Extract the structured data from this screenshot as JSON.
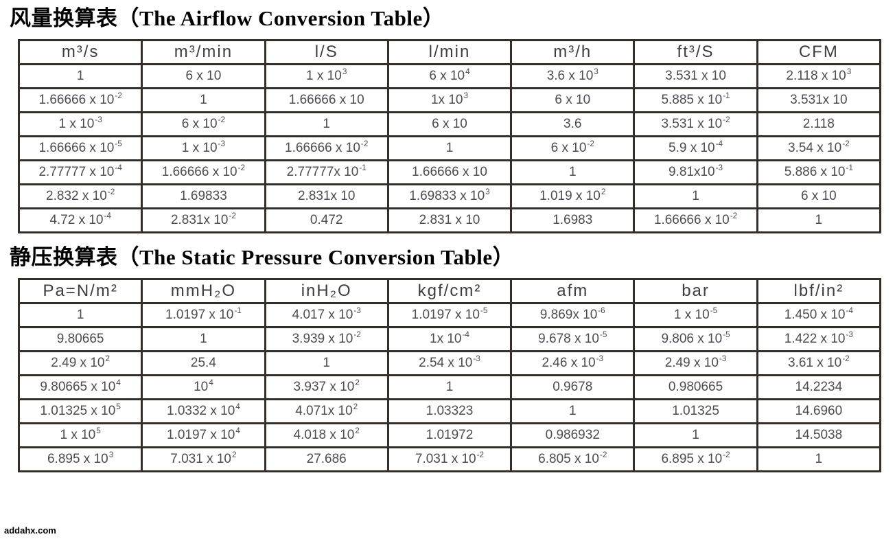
{
  "page": {
    "watermark": "addahx.com"
  },
  "tables": [
    {
      "name": "airflow-conversion-table",
      "title": "风量换算表（The Airflow Conversion Table）",
      "headers": [
        "m³/s",
        "m³/min",
        "l/S",
        "l/min",
        "m³/h",
        "ft³/S",
        "CFM"
      ],
      "rows": [
        [
          "1",
          "6 x 10",
          "1 x 10^3",
          "6 x 10^4",
          "3.6 x 10^3",
          "3.531 x 10",
          "2.118 x 10^3"
        ],
        [
          "1.66666 x 10^-2",
          "1",
          "1.66666 x 10",
          "1x 10^3",
          "6 x 10",
          "5.885 x 10^-1",
          "3.531x 10"
        ],
        [
          "1 x 10^-3",
          "6 x 10^-2",
          "1",
          "6 x 10",
          "3.6",
          "3.531 x 10^-2",
          "2.118"
        ],
        [
          "1.66666 x 10^-5",
          "1 x 10^-3",
          "1.66666 x 10^-2",
          "1",
          "6 x 10^-2",
          "5.9 x 10^-4",
          "3.54 x 10^-2"
        ],
        [
          "2.77777 x 10^-4",
          "1.66666 x 10^-2",
          "2.77777x 10^-1",
          "1.66666 x 10",
          "1",
          "9.81x10^-3",
          "5.886 x 10^-1"
        ],
        [
          "2.832 x 10^-2",
          "1.69833",
          "2.831x 10",
          "1.69833 x 10^3",
          "1.019 x 10^2",
          "1",
          "6 x 10"
        ],
        [
          "4.72 x 10^-4",
          "2.831x 10^-2",
          "0.472",
          "2.831 x 10",
          "1.6983",
          "1.66666 x 10^-2",
          "1"
        ]
      ]
    },
    {
      "name": "static-pressure-conversion-table",
      "title": "静压换算表（The Static Pressure Conversion Table）",
      "headers": [
        "Pa=N/m²",
        "mmH₂O",
        "inH₂O",
        "kgf/cm²",
        "afm",
        "bar",
        "lbf/in²"
      ],
      "rows": [
        [
          "1",
          "1.0197 x 10^-1",
          "4.017 x 10^-3",
          "1.0197 x 10^-5",
          "9.869x 10^-6",
          "1 x 10^-5",
          "1.450 x 10^-4"
        ],
        [
          "9.80665",
          "1",
          "3.939 x 10^-2",
          "1x 10^-4",
          "9.678 x 10^-5",
          "9.806 x 10^-5",
          "1.422 x 10^-3"
        ],
        [
          "2.49 x 10^2",
          "25.4",
          "1",
          "2.54 x 10^-3",
          "2.46 x 10^-3",
          "2.49 x 10^-3",
          "3.61 x 10^-2"
        ],
        [
          "9.80665 x 10^4",
          "10^4",
          "3.937 x 10^2",
          "1",
          "0.9678",
          "0.980665",
          "14.2234"
        ],
        [
          "1.01325 x 10^5",
          "1.0332 x 10^4",
          "4.071x 10^2",
          "1.03323",
          "1",
          "1.01325",
          "14.6960"
        ],
        [
          "1 x 10^5",
          "1.0197 x 10^4",
          "4.018 x 10^2",
          "1.01972",
          "0.986932",
          "1",
          "14.5038"
        ],
        [
          "6.895 x 10^3",
          "7.031 x 10^2",
          "27.686",
          "7.031 x 10^-2",
          "6.805 x 10^-2",
          "6.895 x 10^-2",
          "1"
        ]
      ]
    }
  ]
}
